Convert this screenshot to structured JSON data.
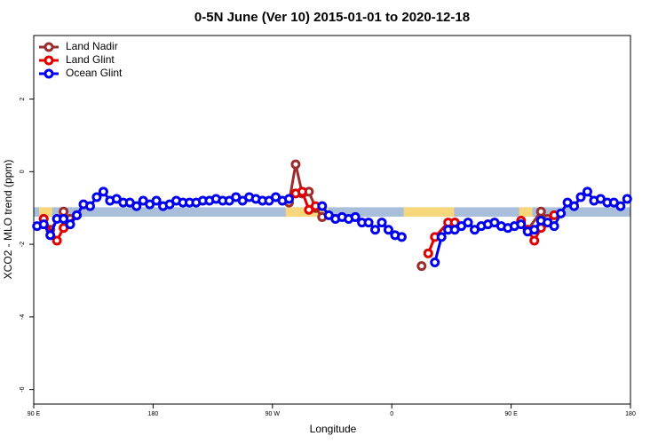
{
  "chart_data": {
    "type": "line",
    "title": "0-5N June (Ver 10)   2015-01-01 to 2020-12-18",
    "xlabel": "Longitude",
    "ylabel": "XCO2 - MLO trend (ppm)",
    "xlim": [
      90,
      540
    ],
    "xticks": [
      {
        "value": 90,
        "label": "90 E"
      },
      180,
      {
        "value": 270,
        "label": "90 W"
      },
      {
        "value": 360,
        "label": "0"
      },
      {
        "value": 450,
        "label": "90 E"
      },
      {
        "value": 540,
        "label": "180"
      }
    ],
    "ylim": [
      -6.4,
      3.75
    ],
    "yticks": [
      -6,
      -4,
      -2,
      0,
      2
    ],
    "legend": "top-left",
    "band": {
      "ylim": [
        -0.98,
        -1.24
      ],
      "color": "#a9bedb",
      "land_color": "#f7d77c",
      "land_ranges": [
        [
          94,
          104
        ],
        [
          280,
          312
        ],
        [
          369,
          407
        ],
        [
          456,
          466
        ]
      ]
    },
    "series": [
      {
        "name": "Land Nadir",
        "color": "#9b2d2d",
        "x": [
          97.5,
          102.5,
          112.5,
          117.5,
          120,
          282.5,
          287.5,
          292.5,
          297.5,
          302.5,
          307.5,
          310,
          382.5,
          385,
          407.5,
          410,
          462.5,
          472.5,
          477.5
        ],
        "values": [
          -1.3,
          -1.6,
          -1.1,
          -1.3,
          null,
          -0.85,
          0.2,
          -0.6,
          -0.55,
          -1.0,
          -1.25,
          null,
          -2.6,
          null,
          -1.4,
          null,
          -1.6,
          -1.1,
          -1.3
        ]
      },
      {
        "name": "Land Glint",
        "color": "#e00000",
        "x": [
          97.5,
          107.5,
          112.5,
          122.5,
          127.5,
          287.5,
          292.5,
          297.5,
          302.5,
          307.5,
          387.5,
          392.5,
          402.5,
          407.5,
          412.5,
          457.5,
          462.5,
          467.5,
          472.5,
          482.5
        ],
        "values": [
          -1.3,
          -1.9,
          -1.55,
          -1.2,
          null,
          -0.6,
          -0.55,
          -1.05,
          -0.95,
          null,
          -2.25,
          -1.8,
          -1.4,
          -1.4,
          null,
          -1.35,
          -1.6,
          -1.9,
          -1.55,
          -1.2
        ]
      },
      {
        "name": "Ocean Glint",
        "color": "#0000ee",
        "x": [
          92.5,
          97.5,
          102.5,
          107.5,
          112.5,
          117.5,
          122.5,
          127.5,
          132.5,
          137.5,
          142.5,
          147.5,
          152.5,
          157.5,
          162.5,
          167.5,
          172.5,
          177.5,
          182.5,
          187.5,
          192.5,
          197.5,
          202.5,
          207.5,
          212.5,
          217.5,
          222.5,
          227.5,
          232.5,
          237.5,
          242.5,
          247.5,
          252.5,
          257.5,
          262.5,
          267.5,
          272.5,
          277.5,
          282.5,
          287.5,
          292.5,
          297.5,
          302.5,
          307.5,
          312.5,
          317.5,
          322.5,
          327.5,
          332.5,
          337.5,
          342.5,
          347.5,
          352.5,
          357.5,
          362.5,
          367.5,
          372.5,
          377.5,
          382.5,
          387.5,
          392.5,
          397.5,
          402.5,
          407.5,
          412.5,
          417.5,
          422.5,
          427.5,
          432.5,
          437.5,
          442.5,
          447.5,
          452.5,
          457.5,
          462.5,
          467.5,
          472.5,
          477.5,
          482.5,
          487.5,
          492.5,
          497.5,
          502.5,
          507.5,
          512.5,
          517.5,
          522.5,
          527.5,
          532.5,
          537.5
        ],
        "values": [
          -1.5,
          -1.45,
          -1.75,
          -1.3,
          -1.3,
          -1.45,
          -1.2,
          -0.9,
          -0.95,
          -0.7,
          -0.55,
          -0.8,
          -0.75,
          -0.85,
          -0.85,
          -0.95,
          -0.8,
          -0.9,
          -0.8,
          -0.95,
          -0.9,
          -0.8,
          -0.85,
          -0.85,
          -0.85,
          -0.8,
          -0.8,
          -0.75,
          -0.8,
          -0.8,
          -0.7,
          -0.8,
          -0.7,
          -0.75,
          -0.8,
          -0.8,
          -0.7,
          -0.8,
          -0.75,
          null,
          null,
          null,
          null,
          -0.95,
          -1.2,
          -1.3,
          -1.25,
          -1.3,
          -1.25,
          -1.4,
          -1.4,
          -1.6,
          -1.4,
          -1.6,
          -1.75,
          -1.8,
          null,
          null,
          null,
          null,
          -2.5,
          -1.8,
          -1.6,
          -1.6,
          -1.5,
          -1.4,
          -1.6,
          -1.5,
          -1.45,
          -1.4,
          -1.5,
          -1.55,
          -1.5,
          -1.45,
          -1.65,
          -1.6,
          -1.35,
          -1.4,
          -1.5,
          -1.15,
          -0.85,
          -0.95,
          -0.7,
          -0.55,
          -0.8,
          -0.75,
          -0.85,
          -0.85,
          -0.95,
          -0.75
        ]
      }
    ]
  }
}
